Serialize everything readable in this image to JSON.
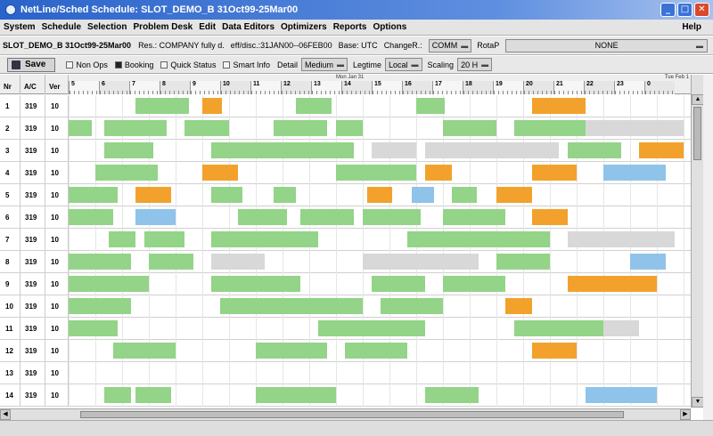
{
  "window": {
    "title": "NetLine/Sched     Schedule: SLOT_DEMO_B 31Oct99-25Mar00",
    "buttons": {
      "minimize": "_",
      "maximize": "□",
      "close": "✕"
    }
  },
  "menu": {
    "items": [
      "System",
      "Schedule",
      "Selection",
      "Problem Desk",
      "Edit",
      "Data Editors",
      "Optimizers",
      "Reports",
      "Options"
    ],
    "help": "Help"
  },
  "info": {
    "schedule": "SLOT_DEMO_B 31Oct99-25Mar00",
    "res": "Res.: COMPANY fully d.",
    "eff": "eff/disc.:31JAN00--06FEB00",
    "base": "Base: UTC",
    "change_label": "ChangeR.:",
    "change_value": "COMM",
    "rotap_label": "RotaP",
    "rotap_value": "NONE"
  },
  "toolbar": {
    "save": "Save",
    "non_ops": "Non Ops",
    "booking": "Booking",
    "quick_status": "Quick Status",
    "smart_info": "Smart Info",
    "detail_label": "Detail",
    "detail_value": "Medium",
    "legtime_label": "Legtime",
    "legtime_value": "Local",
    "scaling_label": "Scaling",
    "scaling_value": "20 H"
  },
  "gantt": {
    "headers": {
      "nr": "Nr",
      "ac": "A/C",
      "ver": "Ver"
    },
    "date_mid": "Mon Jan 31",
    "date_right": "Tue Feb 1",
    "hours": [
      "5",
      "6",
      "7",
      "8",
      "9",
      "10",
      "11",
      "12",
      "13",
      "14",
      "15",
      "16",
      "17",
      "18",
      "19",
      "20",
      "21",
      "22",
      "23",
      "0"
    ],
    "rows": [
      {
        "nr": "1",
        "ac": "319",
        "ver": "10"
      },
      {
        "nr": "2",
        "ac": "319",
        "ver": "10"
      },
      {
        "nr": "3",
        "ac": "319",
        "ver": "10"
      },
      {
        "nr": "4",
        "ac": "319",
        "ver": "10"
      },
      {
        "nr": "5",
        "ac": "319",
        "ver": "10"
      },
      {
        "nr": "6",
        "ac": "319",
        "ver": "10"
      },
      {
        "nr": "7",
        "ac": "319",
        "ver": "10"
      },
      {
        "nr": "8",
        "ac": "319",
        "ver": "10"
      },
      {
        "nr": "9",
        "ac": "319",
        "ver": "10"
      },
      {
        "nr": "10",
        "ac": "319",
        "ver": "10"
      },
      {
        "nr": "11",
        "ac": "319",
        "ver": "10"
      },
      {
        "nr": "12",
        "ac": "319",
        "ver": "10"
      },
      {
        "nr": "13",
        "ac": "319",
        "ver": "10"
      },
      {
        "nr": "14",
        "ac": "319",
        "ver": "10"
      }
    ]
  },
  "colors": {
    "green": "#93d488",
    "orange": "#f2a22c",
    "gray": "#d8d8d8",
    "blue": "#8fc3ea",
    "titlebar": "#2a63c9"
  }
}
